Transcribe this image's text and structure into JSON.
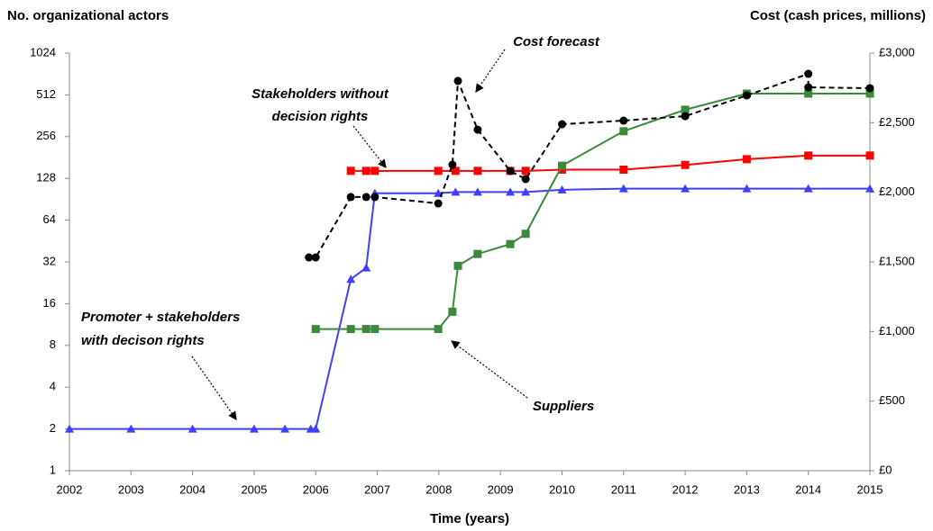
{
  "chart_data": {
    "type": "line",
    "y_title": "No. organizational actors",
    "y2_title": "Cost (cash prices, millions)",
    "x_title": "Time (years)",
    "xlim": [
      2002,
      2015
    ],
    "xticks": [
      2002,
      2003,
      2004,
      2005,
      2006,
      2007,
      2008,
      2009,
      2010,
      2011,
      2012,
      2013,
      2014,
      2015
    ],
    "ylim": [
      1,
      1024
    ],
    "ylog": true,
    "yticks": [
      1,
      2,
      4,
      8,
      16,
      32,
      64,
      128,
      256,
      512,
      1024
    ],
    "y2lim": [
      0,
      3000
    ],
    "y2ticks": [
      {
        "value": 0,
        "label": "£0"
      },
      {
        "value": 500,
        "label": "£500"
      },
      {
        "value": 1000,
        "label": "£1,000"
      },
      {
        "value": 1500,
        "label": "£1,500"
      },
      {
        "value": 2000,
        "label": "£2,000"
      },
      {
        "value": 2500,
        "label": "£2,500"
      },
      {
        "value": 3000,
        "label": "£3,000"
      }
    ],
    "series": [
      {
        "color": "#3f3fff",
        "marker": "triangle",
        "dashed": false,
        "x": [
          2002,
          2003,
          2004,
          2005,
          2005.5,
          2005.92,
          2006,
          2006.57,
          2006.82,
          2006.96,
          2007.99,
          2008.27,
          2008.63,
          2009.16,
          2009.41,
          2010,
          2011,
          2012,
          2013,
          2014,
          2015
        ],
        "values": [
          2,
          2,
          2,
          2,
          2,
          2,
          2,
          24,
          29,
          100,
          100,
          102,
          102,
          102,
          102,
          106,
          108,
          108,
          108,
          108,
          108
        ]
      },
      {
        "color": "#ff0000",
        "marker": "square",
        "dashed": false,
        "x": [
          2006.57,
          2006.82,
          2006.96,
          2007.99,
          2008.27,
          2008.63,
          2009.16,
          2009.41,
          2010,
          2011,
          2012,
          2013,
          2014,
          2015
        ],
        "values": [
          145,
          145,
          145,
          145,
          145,
          145,
          145,
          145,
          148,
          148,
          160,
          176,
          187,
          187
        ]
      },
      {
        "color": "#3a8a3a",
        "marker": "square",
        "dashed": false,
        "x": [
          2006,
          2006.57,
          2006.82,
          2006.96,
          2007.99,
          2008.22,
          2008.31,
          2008.63,
          2009.16,
          2009.41,
          2010,
          2011,
          2012,
          2013,
          2014,
          2015
        ],
        "values": [
          10.5,
          10.5,
          10.5,
          10.5,
          10.5,
          14,
          30,
          36.5,
          43,
          51,
          158,
          280,
          400,
          523,
          523,
          523
        ]
      },
      {
        "color": "#000000",
        "marker": "circle",
        "dashed": true,
        "axis": "y2",
        "x": [
          2005.89,
          2006,
          2006.57,
          2006.82,
          2006.96,
          2007.99,
          2008.22,
          2008.31,
          2008.63,
          2009.16,
          2009.41,
          2010,
          2011,
          2012,
          2013,
          2014,
          2014,
          2015
        ],
        "values": [
          1532,
          1532,
          1966,
          1966,
          1966,
          1920,
          2198,
          2800,
          2450,
          2153,
          2095,
          2489,
          2515,
          2547,
          2696,
          2851,
          2754,
          2748
        ]
      }
    ],
    "annotations": [
      {
        "lines": [
          "Cost forecast"
        ]
      },
      {
        "lines": [
          "Stakeholders without",
          "decision rights"
        ]
      },
      {
        "lines": [
          "Promoter + stakeholders",
          "with decison rights"
        ]
      },
      {
        "lines": [
          "Suppliers"
        ]
      }
    ]
  }
}
